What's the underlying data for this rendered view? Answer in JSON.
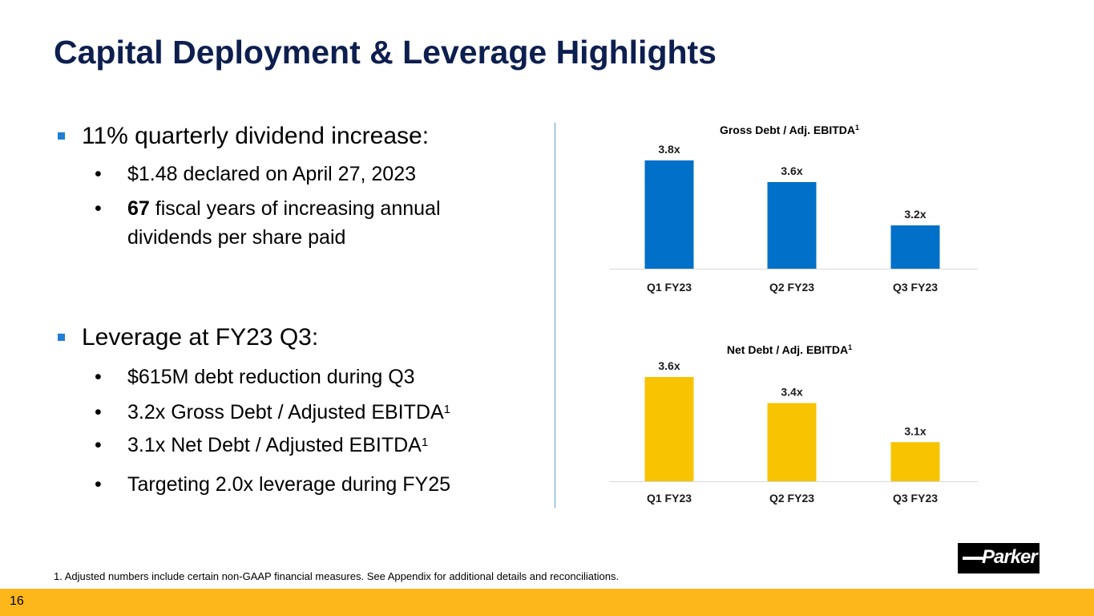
{
  "slide": {
    "title": "Capital Deployment & Leverage Highlights",
    "page_number": "16",
    "footnote": "1. Adjusted numbers include certain non-GAAP financial measures. See Appendix for additional details and reconciliations.",
    "logo_text": "Parker",
    "colors": {
      "title": "#0d1f4f",
      "bullet": "#1e7fd6",
      "gross_bar": "#0070c9",
      "net_bar": "#f8c300",
      "footer": "#fdb71a"
    }
  },
  "bullets": [
    {
      "text": "11% quarterly dividend increase:",
      "sub": [
        {
          "bold": "",
          "text": "$1.48 declared on April 27, 2023",
          "sup": ""
        },
        {
          "bold": "67",
          "text": " fiscal years of increasing annual",
          "text2": "dividends per share paid",
          "sup": ""
        }
      ]
    },
    {
      "text": "Leverage at FY23 Q3:",
      "sub": [
        {
          "bold": "",
          "text": "$615M debt reduction during Q3",
          "sup": ""
        },
        {
          "bold": "",
          "text": "3.2x Gross Debt / Adjusted EBITDA",
          "sup": "1"
        },
        {
          "bold": "",
          "text": "3.1x Net Debt / Adjusted EBITDA",
          "sup": "1"
        },
        {
          "bold": "",
          "text": "Targeting 2.0x leverage during FY25",
          "sup": ""
        }
      ]
    }
  ],
  "bullet_glyph": "•",
  "chart_data": [
    {
      "type": "bar",
      "title": "Gross Debt / Adj. EBITDA",
      "title_sup": "1",
      "categories": [
        "Q1 FY23",
        "Q2 FY23",
        "Q3 FY23"
      ],
      "values": [
        3.8,
        3.6,
        3.2
      ],
      "labels": [
        "3.8x",
        "3.6x",
        "3.2x"
      ],
      "xlabel": "",
      "ylabel": "",
      "ylim": [
        2.8,
        3.8
      ],
      "grid": false,
      "color": "#0070c9"
    },
    {
      "type": "bar",
      "title": "Net Debt / Adj. EBITDA",
      "title_sup": "1",
      "categories": [
        "Q1 FY23",
        "Q2 FY23",
        "Q3 FY23"
      ],
      "values": [
        3.6,
        3.4,
        3.1
      ],
      "labels": [
        "3.6x",
        "3.4x",
        "3.1x"
      ],
      "xlabel": "",
      "ylabel": "",
      "ylim": [
        2.8,
        3.6
      ],
      "grid": false,
      "color": "#f8c300"
    }
  ]
}
